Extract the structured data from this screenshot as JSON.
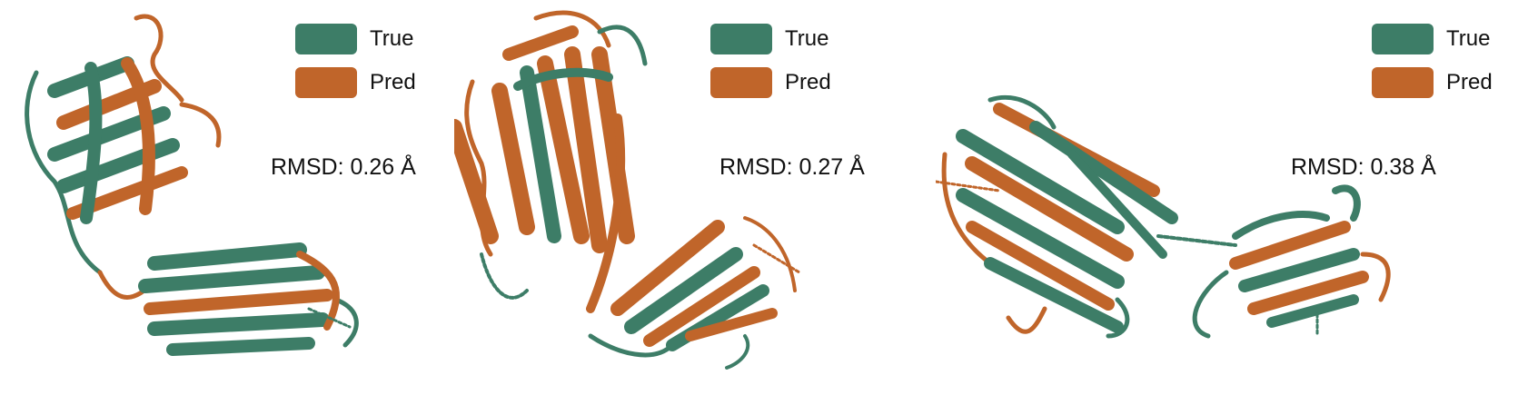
{
  "colors": {
    "true": "#3d7d67",
    "pred": "#c0652a"
  },
  "panels": [
    {
      "legend": {
        "true_label": "True",
        "pred_label": "Pred"
      },
      "rmsd": "RMSD: 0.26 Å"
    },
    {
      "legend": {
        "true_label": "True",
        "pred_label": "Pred"
      },
      "rmsd": "RMSD: 0.27 Å"
    },
    {
      "legend": {
        "true_label": "True",
        "pred_label": "Pred"
      },
      "rmsd": "RMSD: 0.38 Å"
    }
  ]
}
